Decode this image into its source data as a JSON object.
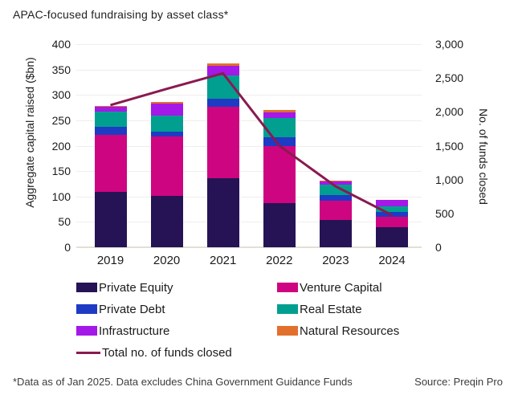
{
  "title": "APAC-focused fundraising by asset class*",
  "footer": {
    "footnote": "*Data as of Jan 2025. Data excludes China Government Guidance Funds",
    "source": "Source: Preqin Pro"
  },
  "chart_data": {
    "type": "bar",
    "stacked": true,
    "title": "APAC-focused fundraising by asset class*",
    "categories": [
      "2019",
      "2020",
      "2021",
      "2022",
      "2023",
      "2024"
    ],
    "left_axis": {
      "label": "Aggregate capital raised ($bn)",
      "min": 0,
      "max": 400,
      "tick_step": 50,
      "ticks": [
        "400",
        "350",
        "300",
        "250",
        "200",
        "150",
        "100",
        "50",
        "0"
      ]
    },
    "right_axis": {
      "label": "No. of funds closed",
      "min": 0,
      "max": 3000,
      "tick_step": 500,
      "ticks": [
        "3,000",
        "2,500",
        "2,000",
        "1,500",
        "1,000",
        "500",
        "0"
      ]
    },
    "grid": true,
    "legend_position": "bottom",
    "series": [
      {
        "name": "Private Equity",
        "color": "#251356",
        "values": [
          109,
          102,
          136,
          87,
          53,
          39
        ]
      },
      {
        "name": "Venture Capital",
        "color": "#CE0580",
        "values": [
          113,
          116,
          141,
          112,
          38,
          21
        ]
      },
      {
        "name": "Private Debt",
        "color": "#1E3BC3",
        "values": [
          15,
          10,
          15,
          18,
          12,
          10
        ]
      },
      {
        "name": "Real Estate",
        "color": "#019F90",
        "values": [
          31,
          31,
          47,
          37,
          21,
          11
        ]
      },
      {
        "name": "Infrastructure",
        "color": "#A418E8",
        "values": [
          9,
          24,
          19,
          11,
          6,
          13
        ]
      },
      {
        "name": "Natural Resources",
        "color": "#E2702D",
        "values": [
          2,
          3,
          4,
          5,
          1,
          0
        ]
      }
    ],
    "totals": [
      279,
      286,
      362,
      270,
      131,
      94
    ],
    "line_series": {
      "name": "Total no. of funds closed",
      "color": "#8A1A50",
      "axis": "right",
      "values": [
        2100,
        2340,
        2570,
        1500,
        900,
        475
      ]
    },
    "colors": {
      "gridline": "#F0EEEC",
      "baseline": "#E5DED5",
      "text": "#1B1B1B"
    }
  }
}
